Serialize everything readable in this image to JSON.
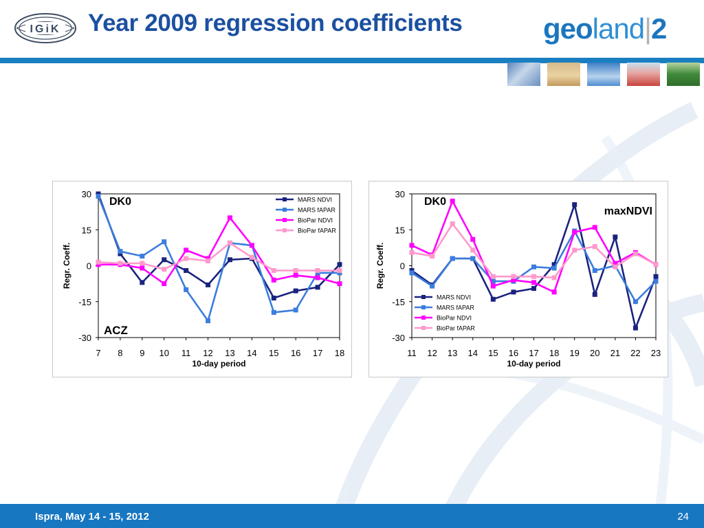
{
  "slide": {
    "title": "Year 2009 regression coefficients",
    "logo_left_text": "IGiK",
    "logo_right": {
      "part1": "geo",
      "part2": "land",
      "sep": "|",
      "part3": "2"
    },
    "footer_text": "Ispra, May 14 - 15, 2012",
    "page_number": "24",
    "accent_color": "#1a7fc1",
    "title_color": "#1c50a0"
  },
  "chart_data": [
    {
      "type": "line",
      "xlabel": "10-day period",
      "ylabel": "Regr. Coeff.",
      "ylim": [
        -30,
        30
      ],
      "yticks": [
        "30",
        "15",
        "0",
        "-15",
        "-30"
      ],
      "categories": [
        "7",
        "8",
        "9",
        "10",
        "11",
        "12",
        "13",
        "14",
        "15",
        "16",
        "17",
        "18"
      ],
      "annotations": [
        "DK0",
        "ACZ"
      ],
      "legend_position": "top-right",
      "series": [
        {
          "name": "MARS NDVI",
          "color": "#1a237e",
          "values": [
            30,
            5,
            -7,
            2.5,
            -2,
            -8,
            2.5,
            3,
            -13.5,
            -10.5,
            -9,
            0.5
          ]
        },
        {
          "name": "MARS fAPAR",
          "color": "#3b7ddd",
          "values": [
            29,
            6,
            4,
            10,
            -10,
            -23,
            9.5,
            8.5,
            -19.5,
            -18.5,
            -3,
            -3
          ]
        },
        {
          "name": "BioPar NDVI",
          "color": "#ff00ff",
          "values": [
            0.5,
            0.5,
            -1,
            -7.5,
            6.5,
            3,
            20,
            8.5,
            -6,
            -4,
            -5,
            -7.5
          ]
        },
        {
          "name": "BioPar fAPAR",
          "color": "#ff99cc",
          "values": [
            1.5,
            1,
            1,
            -1.5,
            3,
            2,
            9.5,
            3.5,
            -2,
            -2,
            -2,
            -2
          ]
        }
      ]
    },
    {
      "type": "line",
      "xlabel": "10-day period",
      "ylabel": "Regr. Coeff.",
      "ylim": [
        -30,
        30
      ],
      "yticks": [
        "30",
        "15",
        "0",
        "-15",
        "-30"
      ],
      "categories": [
        "11",
        "12",
        "13",
        "14",
        "15",
        "16",
        "17",
        "18",
        "19",
        "20",
        "21",
        "22",
        "23"
      ],
      "annotations": [
        "DK0",
        "maxNDVI"
      ],
      "legend_position": "bottom-left",
      "series": [
        {
          "name": "MARS NDVI",
          "color": "#1a237e",
          "values": [
            -2,
            -8,
            3,
            3,
            -14,
            -11,
            -9.5,
            0.5,
            25.5,
            -12,
            12,
            -26,
            -4.5
          ]
        },
        {
          "name": "MARS fAPAR",
          "color": "#3b7ddd",
          "values": [
            -3,
            -8.5,
            3,
            3,
            -6.5,
            -6.5,
            -0.5,
            -1,
            14.5,
            -2,
            0,
            -15,
            -6.5
          ]
        },
        {
          "name": "BioPar NDVI",
          "color": "#ff00ff",
          "values": [
            8.5,
            4.5,
            27,
            11,
            -8.5,
            -6,
            -7,
            -11,
            14,
            16,
            1,
            5.5,
            0.5
          ]
        },
        {
          "name": "BioPar fAPAR",
          "color": "#ff99cc",
          "values": [
            5.5,
            4,
            17.5,
            6.5,
            -4.5,
            -4.5,
            -4.5,
            -5,
            6.5,
            8,
            -0.5,
            5,
            0.5
          ]
        }
      ]
    }
  ]
}
